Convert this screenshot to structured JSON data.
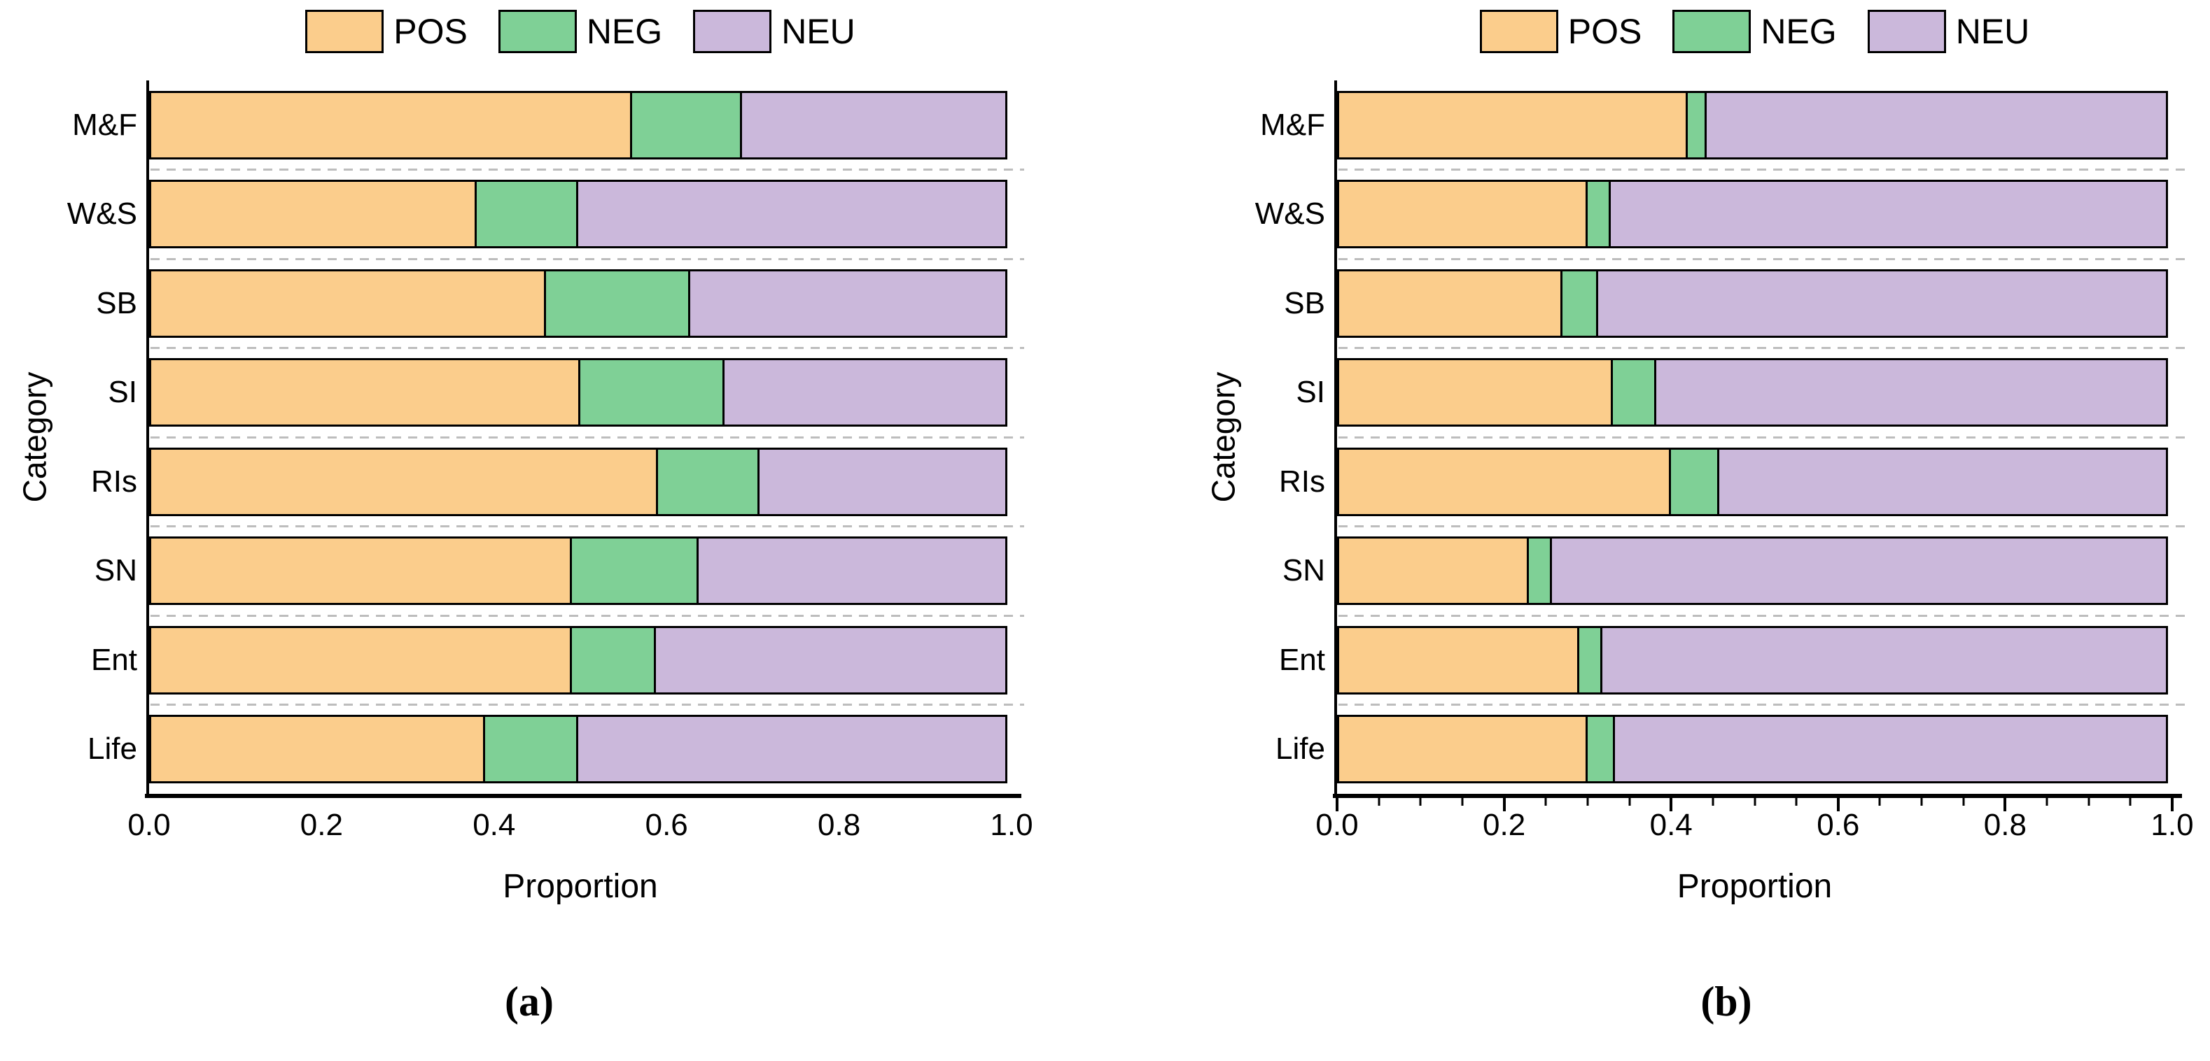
{
  "colors": {
    "pos": "#FBCD8C",
    "neg": "#7FD096",
    "neu": "#CBB8DB",
    "bar_border": "#000000",
    "separator": "#BDBDBD",
    "axis": "#000000",
    "background": "#FFFFFF"
  },
  "chart_data": [
    {
      "id": "a",
      "type": "bar",
      "orientation": "horizontal",
      "stacked": true,
      "title": "",
      "caption": "(a)",
      "xlabel": "Proportion",
      "ylabel": "Category",
      "xlim": [
        0.0,
        1.0
      ],
      "x_ticks": [
        "0.0",
        "0.2",
        "0.4",
        "0.6",
        "0.8",
        "1.0"
      ],
      "minor_tick_step": null,
      "grid": "dashed-row-separators",
      "legend_position": "top",
      "legend": [
        "POS",
        "NEG",
        "NEU"
      ],
      "categories": [
        "M&F",
        "W&S",
        "SB",
        "SI",
        "RIs",
        "SN",
        "Ent",
        "Life"
      ],
      "series": [
        {
          "name": "POS",
          "color_key": "pos",
          "values": [
            0.56,
            0.38,
            0.46,
            0.5,
            0.59,
            0.49,
            0.49,
            0.39
          ]
        },
        {
          "name": "NEG",
          "color_key": "neg",
          "values": [
            0.13,
            0.12,
            0.17,
            0.17,
            0.12,
            0.15,
            0.1,
            0.11
          ]
        },
        {
          "name": "NEU",
          "color_key": "neu",
          "values": [
            0.31,
            0.5,
            0.37,
            0.33,
            0.29,
            0.36,
            0.41,
            0.5
          ]
        }
      ]
    },
    {
      "id": "b",
      "type": "bar",
      "orientation": "horizontal",
      "stacked": true,
      "title": "",
      "caption": "(b)",
      "xlabel": "Proportion",
      "ylabel": "Category",
      "xlim": [
        0.0,
        1.0
      ],
      "x_ticks": [
        "0.0",
        "0.2",
        "0.4",
        "0.6",
        "0.8",
        "1.0"
      ],
      "minor_tick_step": 0.05,
      "grid": "dashed-row-separators",
      "legend_position": "top",
      "legend": [
        "POS",
        "NEG",
        "NEU"
      ],
      "categories": [
        "M&F",
        "W&S",
        "SB",
        "SI",
        "RIs",
        "SN",
        "Ent",
        "Life"
      ],
      "series": [
        {
          "name": "POS",
          "color_key": "pos",
          "values": [
            0.42,
            0.3,
            0.27,
            0.33,
            0.4,
            0.23,
            0.29,
            0.3
          ]
        },
        {
          "name": "NEG",
          "color_key": "neg",
          "values": [
            0.025,
            0.03,
            0.045,
            0.055,
            0.06,
            0.03,
            0.03,
            0.035
          ]
        },
        {
          "name": "NEU",
          "color_key": "neu",
          "values": [
            0.555,
            0.67,
            0.685,
            0.615,
            0.54,
            0.74,
            0.68,
            0.665
          ]
        }
      ]
    }
  ]
}
